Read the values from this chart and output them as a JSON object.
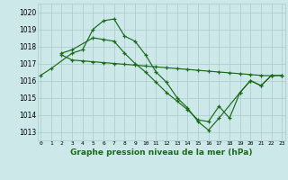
{
  "title": "Graphe pression niveau de la mer (hPa)",
  "bg_color": "#cce8e8",
  "grid_color": "#aacccc",
  "line_color": "#1a6b1a",
  "ylim": [
    1012.5,
    1020.5
  ],
  "xlim": [
    -0.3,
    23.3
  ],
  "xticks": [
    0,
    1,
    2,
    3,
    4,
    5,
    6,
    7,
    8,
    9,
    10,
    11,
    12,
    13,
    14,
    15,
    16,
    17,
    18,
    19,
    20,
    21,
    22,
    23
  ],
  "yticks": [
    1013,
    1014,
    1015,
    1016,
    1017,
    1018,
    1019,
    1020
  ],
  "series1_x": [
    0,
    1,
    3,
    4,
    5,
    6,
    7,
    8,
    9,
    10,
    11,
    12,
    13,
    14,
    15,
    16,
    17,
    19,
    20,
    21,
    22
  ],
  "series1_y": [
    1016.3,
    1016.7,
    1017.6,
    1017.8,
    1019.0,
    1019.5,
    1019.6,
    1018.6,
    1018.3,
    1017.5,
    1016.5,
    1015.9,
    1015.0,
    1014.4,
    1013.6,
    1013.1,
    1013.8,
    1015.3,
    1016.0,
    1015.7,
    1016.3
  ],
  "series2_x": [
    2,
    3,
    4,
    5,
    6,
    7,
    8,
    9,
    10,
    11,
    12,
    13,
    14,
    15,
    16,
    17,
    18,
    19,
    20,
    21,
    22,
    23
  ],
  "series2_y": [
    1017.5,
    1017.2,
    1017.15,
    1017.1,
    1017.05,
    1017.0,
    1016.95,
    1016.9,
    1016.85,
    1016.8,
    1016.75,
    1016.7,
    1016.65,
    1016.6,
    1016.55,
    1016.5,
    1016.45,
    1016.4,
    1016.35,
    1016.3,
    1016.28,
    1016.3
  ],
  "series3_x": [
    2,
    3,
    5,
    6,
    7,
    8,
    9,
    10,
    11,
    12,
    13,
    14,
    15,
    16,
    17,
    18,
    19,
    20,
    21,
    22,
    23
  ],
  "series3_y": [
    1017.6,
    1017.8,
    1018.5,
    1018.4,
    1018.3,
    1017.6,
    1017.0,
    1016.5,
    1015.9,
    1015.3,
    1014.8,
    1014.3,
    1013.7,
    1013.6,
    1014.5,
    1013.8,
    1015.3,
    1016.0,
    1015.7,
    1016.3,
    1016.3
  ]
}
